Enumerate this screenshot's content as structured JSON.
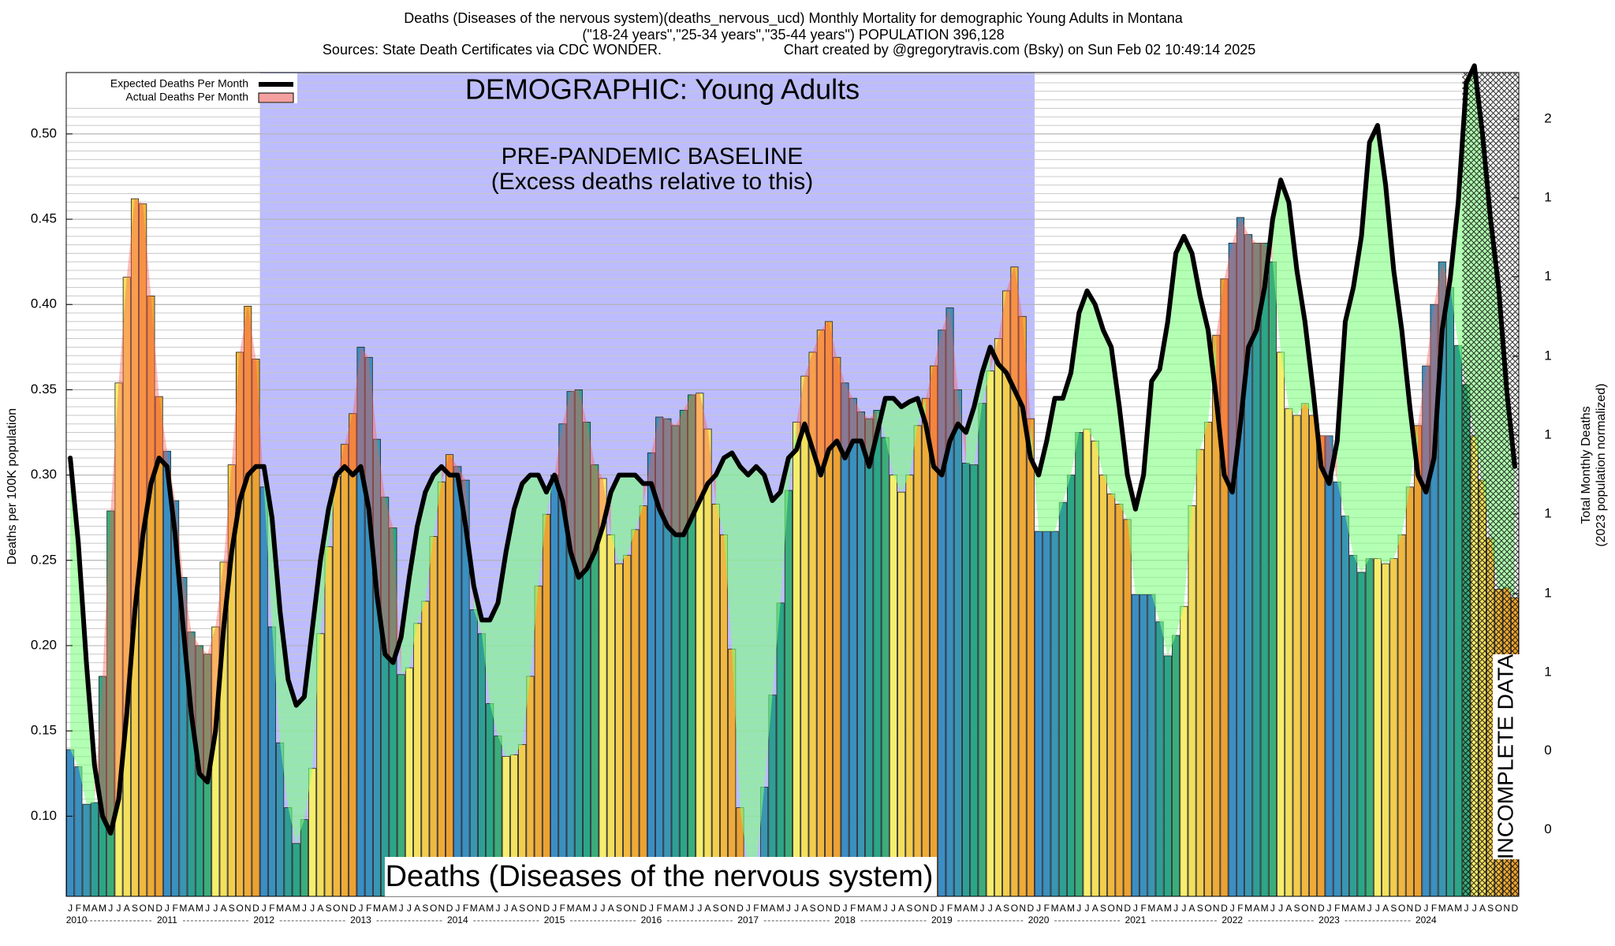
{
  "chart_data": {
    "type": "bar",
    "title": "Deaths (Diseases of the nervous system)(deaths_nervous_ucd) Monthly Mortality for demographic Young Adults in Montana",
    "subtitle": "(\"18-24 years\",\"25-34 years\",\"35-44 years\") POPULATION 396,128",
    "sources": "Sources: State Death Certificates via CDC WONDER.",
    "credit": "Chart created by @gregorytravis.com (Bsky) on Sun Feb 02 10:49:14 2025",
    "annotations": {
      "demographic": "DEMOGRAPHIC: Young Adults",
      "baseline": "PRE-PANDEMIC BASELINE",
      "baseline_note": "(Excess deaths relative to this)",
      "cause": "Deaths (Diseases of the nervous system)",
      "incomplete": "INCOMPLETE DATA"
    },
    "ylabel": "Deaths per 100K population",
    "y2label": [
      "Total Monthly Deaths",
      "(2023 population normalized)"
    ],
    "categories": [
      "J",
      "F",
      "M",
      "A",
      "M",
      "J",
      "J",
      "A",
      "S",
      "O",
      "N",
      "D",
      "J",
      "F",
      "M",
      "A",
      "M",
      "J",
      "J",
      "A",
      "S",
      "O",
      "N",
      "D",
      "J",
      "F",
      "M",
      "A",
      "M",
      "J",
      "J",
      "A",
      "S",
      "O",
      "N",
      "D",
      "J",
      "F",
      "M",
      "A",
      "M",
      "J",
      "J",
      "A",
      "S",
      "O",
      "N",
      "D",
      "J",
      "F",
      "M",
      "A",
      "M",
      "J",
      "J",
      "A",
      "S",
      "O",
      "N",
      "D",
      "J",
      "F",
      "M",
      "A",
      "M",
      "J",
      "J",
      "A",
      "S",
      "O",
      "N",
      "D",
      "J",
      "F",
      "M",
      "A",
      "M",
      "J",
      "J",
      "A",
      "S",
      "O",
      "N",
      "D",
      "J",
      "F",
      "M",
      "A",
      "M",
      "J",
      "J",
      "A",
      "S",
      "O",
      "N",
      "D",
      "J",
      "F",
      "M",
      "A",
      "M",
      "J",
      "J",
      "A",
      "S",
      "O",
      "N",
      "D",
      "J",
      "F",
      "M",
      "A",
      "M",
      "J",
      "J",
      "A",
      "S",
      "O",
      "N",
      "D",
      "J",
      "F",
      "M",
      "A",
      "M",
      "J",
      "J",
      "A",
      "S",
      "O",
      "N",
      "D",
      "J",
      "F",
      "M",
      "A",
      "M",
      "J",
      "J",
      "A",
      "S",
      "O",
      "N",
      "D",
      "J",
      "F",
      "M",
      "A",
      "M",
      "J",
      "J",
      "A",
      "S",
      "O",
      "N",
      "D",
      "J",
      "F",
      "M",
      "A",
      "M",
      "J",
      "J",
      "A",
      "S",
      "O",
      "N",
      "D",
      "J",
      "F",
      "M",
      "A",
      "M",
      "J",
      "J",
      "A",
      "S",
      "O",
      "N",
      "D"
    ],
    "years": [
      "2010",
      "2011",
      "2012",
      "2013",
      "2014",
      "2015",
      "2016",
      "2017",
      "2018",
      "2019",
      "2020",
      "2021",
      "2022",
      "2023",
      "2024"
    ],
    "month_colors": [
      "#3b8ec4",
      "#3a90bf",
      "#3996b2",
      "#2f9f96",
      "#2ba687",
      "#3bad7a",
      "#f6ee6c",
      "#f2e05e",
      "#f2cd4e",
      "#f0b840",
      "#eeab38",
      "#eca232"
    ],
    "above_color": "#ff5a50",
    "below_color": "#80ff80",
    "series": [
      {
        "name": "Expected Deaths Per Month",
        "color": "#000000",
        "values": [
          0.31,
          0.26,
          0.19,
          0.13,
          0.1,
          0.09,
          0.11,
          0.16,
          0.22,
          0.265,
          0.295,
          0.31,
          0.305,
          0.265,
          0.21,
          0.16,
          0.125,
          0.12,
          0.15,
          0.21,
          0.255,
          0.285,
          0.3,
          0.305,
          0.305,
          0.275,
          0.22,
          0.18,
          0.165,
          0.17,
          0.21,
          0.25,
          0.28,
          0.3,
          0.305,
          0.3,
          0.305,
          0.28,
          0.23,
          0.195,
          0.19,
          0.205,
          0.24,
          0.27,
          0.29,
          0.3,
          0.305,
          0.3,
          0.3,
          0.27,
          0.235,
          0.215,
          0.215,
          0.225,
          0.255,
          0.28,
          0.295,
          0.3,
          0.3,
          0.29,
          0.3,
          0.285,
          0.255,
          0.24,
          0.245,
          0.255,
          0.27,
          0.29,
          0.3,
          0.3,
          0.3,
          0.295,
          0.295,
          0.28,
          0.27,
          0.265,
          0.265,
          0.275,
          0.285,
          0.295,
          0.3,
          0.31,
          0.313,
          0.305,
          0.3,
          0.305,
          0.3,
          0.285,
          0.29,
          0.31,
          0.315,
          0.33,
          0.315,
          0.3,
          0.315,
          0.32,
          0.31,
          0.32,
          0.32,
          0.305,
          0.325,
          0.345,
          0.345,
          0.34,
          0.343,
          0.345,
          0.33,
          0.305,
          0.3,
          0.32,
          0.33,
          0.325,
          0.34,
          0.36,
          0.375,
          0.365,
          0.36,
          0.35,
          0.34,
          0.31,
          0.3,
          0.32,
          0.345,
          0.345,
          0.36,
          0.395,
          0.408,
          0.4,
          0.385,
          0.375,
          0.34,
          0.3,
          0.28,
          0.3,
          0.355,
          0.362,
          0.39,
          0.43,
          0.44,
          0.43,
          0.405,
          0.385,
          0.345,
          0.3,
          0.29,
          0.33,
          0.375,
          0.385,
          0.41,
          0.45,
          0.473,
          0.46,
          0.42,
          0.39,
          0.35,
          0.305,
          0.295,
          0.32,
          0.39,
          0.41,
          0.44,
          0.495,
          0.505,
          0.47,
          0.42,
          0.385,
          0.34,
          0.3,
          0.29,
          0.31,
          0.385,
          0.415,
          0.46,
          0.53,
          0.54,
          0.5,
          0.45,
          0.41,
          0.35,
          0.305
        ]
      },
      {
        "name": "Actual Deaths Per Month",
        "color": "#f4a0a0",
        "values": [
          0.139,
          0.129,
          0.107,
          0.108,
          0.182,
          0.279,
          0.354,
          0.416,
          0.462,
          0.459,
          0.405,
          0.346,
          0.314,
          0.285,
          0.24,
          0.208,
          0.2,
          0.195,
          0.211,
          0.249,
          0.306,
          0.372,
          0.399,
          0.368,
          0.293,
          0.211,
          0.143,
          0.105,
          0.084,
          0.098,
          0.128,
          0.207,
          0.258,
          0.299,
          0.318,
          0.336,
          0.375,
          0.369,
          0.321,
          0.287,
          0.269,
          0.183,
          0.187,
          0.213,
          0.226,
          0.264,
          0.296,
          0.312,
          0.305,
          0.297,
          0.221,
          0.207,
          0.166,
          0.147,
          0.135,
          0.136,
          0.142,
          0.182,
          0.235,
          0.277,
          0.3,
          0.33,
          0.349,
          0.35,
          0.331,
          0.306,
          0.298,
          0.265,
          0.248,
          0.253,
          0.268,
          0.282,
          0.313,
          0.334,
          0.333,
          0.329,
          0.338,
          0.347,
          0.348,
          0.327,
          0.283,
          0.265,
          0.198,
          0.105,
          0.07,
          0.07,
          0.117,
          0.171,
          0.225,
          0.291,
          0.331,
          0.358,
          0.372,
          0.385,
          0.39,
          0.369,
          0.354,
          0.345,
          0.337,
          0.333,
          0.338,
          0.322,
          0.3,
          0.29,
          0.3,
          0.329,
          0.345,
          0.364,
          0.385,
          0.398,
          0.35,
          0.307,
          0.306,
          0.342,
          0.361,
          0.38,
          0.408,
          0.422,
          0.393,
          0.333,
          0.267,
          0.267,
          0.267,
          0.284,
          0.3,
          0.325,
          0.327,
          0.32,
          0.3,
          0.289,
          0.283,
          0.274,
          0.23,
          0.23,
          0.23,
          0.214,
          0.194,
          0.206,
          0.223,
          0.282,
          0.315,
          0.331,
          0.382,
          0.415,
          0.436,
          0.451,
          0.441,
          0.436,
          0.436,
          0.425,
          0.372,
          0.339,
          0.335,
          0.342,
          0.335,
          0.323,
          0.323,
          0.296,
          0.276,
          0.253,
          0.243,
          0.251,
          0.251,
          0.248,
          0.251,
          0.265,
          0.293,
          0.329,
          0.364,
          0.4,
          0.425,
          0.41,
          0.376,
          0.353,
          0.323,
          0.297,
          0.263,
          0.233,
          0.234,
          0.228
        ]
      }
    ],
    "ylim": [
      0.053,
      0.536
    ],
    "yticks": [
      {
        "value": 0.1,
        "label": "0.10"
      },
      0.15,
      {
        "value": 0.2,
        "label": "0.20"
      },
      0.25,
      {
        "value": 0.3,
        "label": "0.30"
      },
      0.35,
      {
        "value": 0.4,
        "label": "0.40"
      },
      0.45,
      {
        "value": 0.5,
        "label": "0.50"
      }
    ],
    "y2lim": [
      0.21,
      2.123
    ],
    "y2ticks": [
      {
        "value": 0.365,
        "label": "0"
      },
      {
        "value": 0.548,
        "label": "0"
      },
      {
        "value": 0.73,
        "label": "1"
      },
      {
        "value": 0.913,
        "label": "1"
      },
      {
        "value": 1.098,
        "label": "1"
      },
      {
        "value": 1.281,
        "label": "1"
      },
      {
        "value": 1.464,
        "label": "1"
      },
      {
        "value": 1.649,
        "label": "1"
      },
      {
        "value": 1.832,
        "label": "1"
      },
      {
        "value": 2.015,
        "label": "2"
      }
    ],
    "grid": true,
    "minor_grid_step": 0.005,
    "legend": "upper left"
  }
}
